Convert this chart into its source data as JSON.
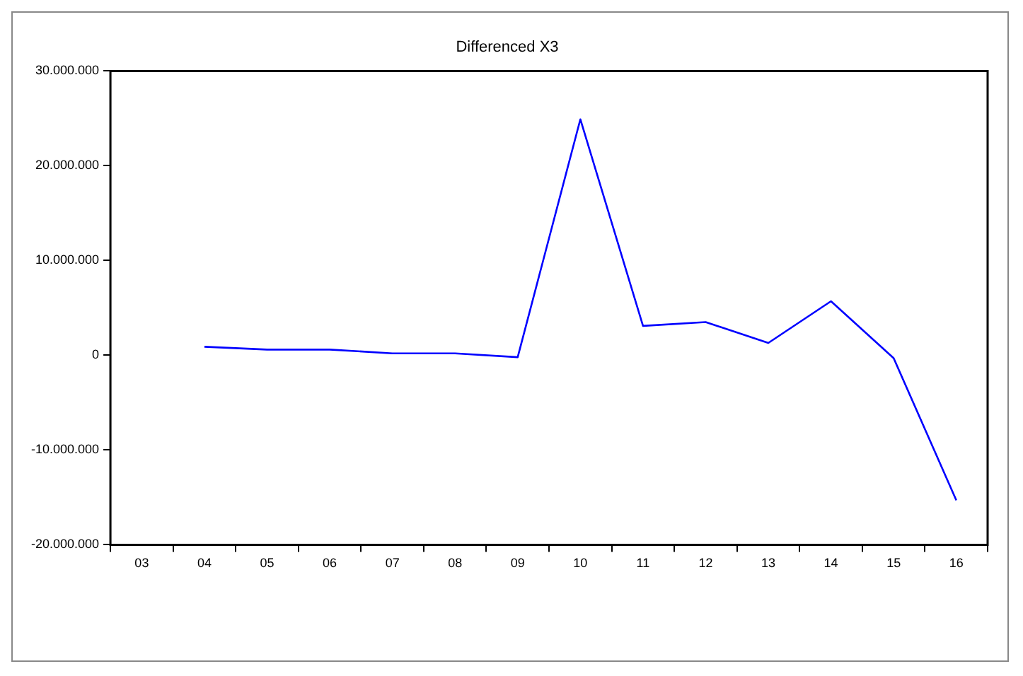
{
  "chart_data": {
    "type": "line",
    "title": "Differenced X3",
    "categories": [
      "03",
      "04",
      "05",
      "06",
      "07",
      "08",
      "09",
      "10",
      "11",
      "12",
      "13",
      "14",
      "15",
      "16"
    ],
    "series": [
      {
        "color": "#0000ff",
        "values": [
          null,
          900000,
          600000,
          600000,
          200000,
          200000,
          -200000,
          24900000,
          3100000,
          3500000,
          1300000,
          5700000,
          -300000,
          -15300000
        ]
      }
    ],
    "ylim": [
      -20000000,
      30000000
    ],
    "yticks": [
      {
        "value": -20000000,
        "label": "-20.000.000"
      },
      {
        "value": -10000000,
        "label": "-10.000.000"
      },
      {
        "value": 0,
        "label": "0"
      },
      {
        "value": 10000000,
        "label": "10.000.000"
      },
      {
        "value": 20000000,
        "label": "20.000.000"
      },
      {
        "value": 30000000,
        "label": "30.000.000"
      }
    ],
    "grid": false,
    "legend": false,
    "marker": "none",
    "line_style": "solid"
  }
}
